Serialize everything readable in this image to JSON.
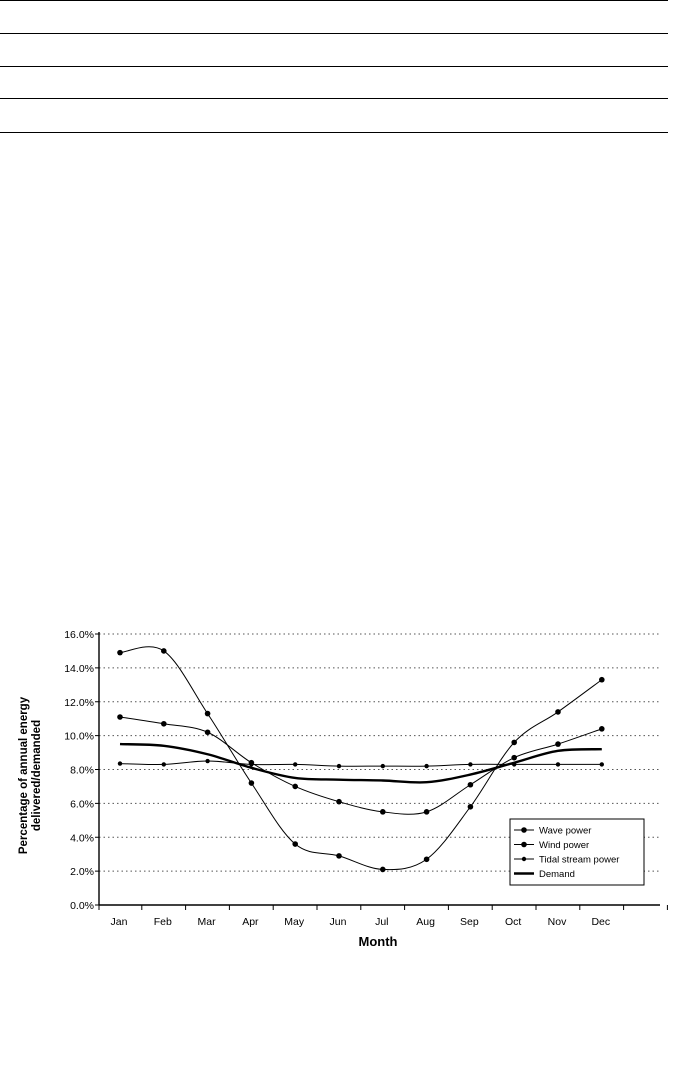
{
  "chart_data": {
    "type": "line",
    "title": "",
    "xlabel": "Month",
    "ylabel": "Percentage of annual energy delivered/demanded",
    "ylabel_lines": [
      "Percentage of annual energy",
      "delivered/demanded"
    ],
    "categories": [
      "Jan",
      "Feb",
      "Mar",
      "Apr",
      "May",
      "Jun",
      "Jul",
      "Aug",
      "Sep",
      "Oct",
      "Nov",
      "Dec"
    ],
    "ylim": [
      0,
      16
    ],
    "yticks": [
      0,
      2,
      4,
      6,
      8,
      10,
      12,
      14,
      16
    ],
    "ytick_labels": [
      "0.0%",
      "2.0%",
      "4.0%",
      "6.0%",
      "8.0%",
      "10.0%",
      "12.0%",
      "14.0%",
      "16.0%"
    ],
    "grid": "horizontal-dotted",
    "legend_position": "bottom-right",
    "series": [
      {
        "name": "Wave power",
        "marker": "circle",
        "values": [
          14.9,
          15.0,
          11.3,
          7.2,
          3.6,
          2.9,
          2.1,
          2.7,
          5.8,
          9.6,
          11.4,
          13.3
        ]
      },
      {
        "name": "Wind power",
        "marker": "circle",
        "values": [
          11.1,
          10.7,
          10.2,
          8.4,
          7.0,
          6.1,
          5.5,
          5.5,
          7.1,
          8.7,
          9.5,
          10.4
        ]
      },
      {
        "name": "Tidal stream power",
        "marker": "small-circle",
        "values": [
          8.35,
          8.3,
          8.5,
          8.3,
          8.3,
          8.2,
          8.2,
          8.2,
          8.3,
          8.3,
          8.3,
          8.3
        ]
      },
      {
        "name": "Demand",
        "marker": "none",
        "values": [
          9.5,
          9.4,
          8.9,
          8.1,
          7.5,
          7.4,
          7.35,
          7.25,
          7.7,
          8.4,
          9.1,
          9.2
        ]
      }
    ],
    "colors": {
      "line": "#000000",
      "grid": "#555555",
      "background": "#ffffff"
    }
  }
}
